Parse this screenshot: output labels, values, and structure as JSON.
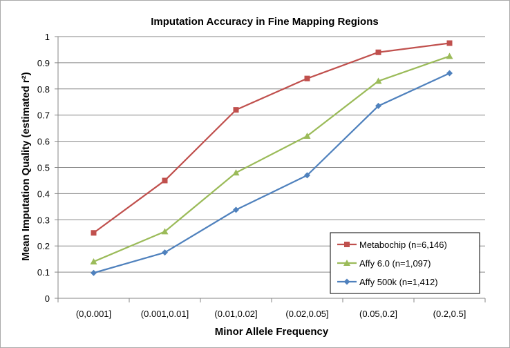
{
  "chart_data": {
    "type": "line",
    "title": "Imputation Accuracy in Fine Mapping Regions",
    "xlabel": "Minor Allele Frequency",
    "ylabel": "Mean Imputation Quality (estimated r²)",
    "categories": [
      "(0,0.001]",
      "(0.001,0.01]",
      "(0.01,0.02]",
      "(0.02,0.05]",
      "(0.05,0.2]",
      "(0.2,0.5]"
    ],
    "ylim": [
      0,
      1
    ],
    "yticks": [
      "0",
      "0.1",
      "0.2",
      "0.3",
      "0.4",
      "0.5",
      "0.6",
      "0.7",
      "0.8",
      "0.9",
      "1"
    ],
    "grid": "horizontal",
    "legend_position": "bottom-right",
    "series": [
      {
        "name": "Metabochip (n=6,146)",
        "values": [
          0.25,
          0.45,
          0.72,
          0.84,
          0.94,
          0.975
        ],
        "color": "#c0504d",
        "marker": "square"
      },
      {
        "name": "Affy 6.0 (n=1,097)",
        "values": [
          0.14,
          0.255,
          0.48,
          0.62,
          0.83,
          0.925
        ],
        "color": "#9bbb59",
        "marker": "triangle"
      },
      {
        "name": "Affy 500k (n=1,412)",
        "values": [
          0.097,
          0.175,
          0.338,
          0.47,
          0.735,
          0.86
        ],
        "color": "#4f81bd",
        "marker": "diamond"
      }
    ]
  }
}
